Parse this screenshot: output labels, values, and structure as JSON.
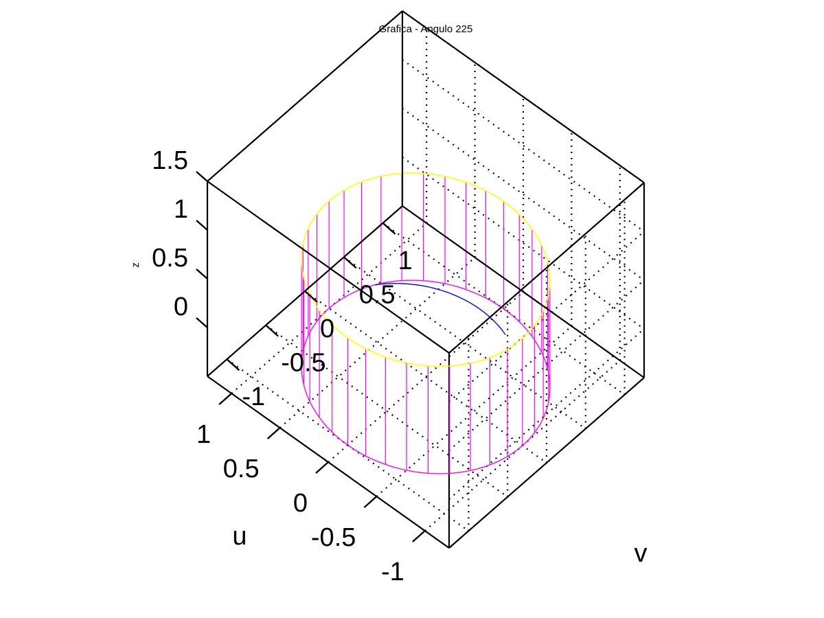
{
  "chart_data": {
    "type": "surface3d",
    "title": "Grafica - Angulo  225",
    "xlabel": "u",
    "ylabel": "v",
    "zlabel": "z",
    "xlim": [
      -1.25,
      1.25
    ],
    "ylim": [
      -1.25,
      1.25
    ],
    "zlim": [
      -0.5,
      1.5
    ],
    "xticks": [
      1,
      0.5,
      0,
      -0.5,
      -1
    ],
    "xtick_labels": [
      "1",
      "0.5",
      "0",
      "-0.5",
      "-1"
    ],
    "yticks": [
      -1,
      -0.5,
      0,
      0.5,
      1
    ],
    "ytick_labels": [
      "-1",
      "-0.5",
      "0",
      "0.5",
      "1"
    ],
    "zticks": [
      1.5,
      1,
      0.5,
      0
    ],
    "ztick_labels": [
      "1.5",
      "1",
      "0.5",
      "0"
    ],
    "grid": true,
    "view_azimuth_deg": 225,
    "series": [
      {
        "kind": "cylinder_wall",
        "radius": 1,
        "z_range": [
          -0.5,
          0.6
        ],
        "vertical_lines": 36,
        "color": "#ff00ff"
      },
      {
        "kind": "top_edge_circle",
        "radius": 1,
        "z": 0.6,
        "color": "#ffff00"
      },
      {
        "kind": "base_curve",
        "z": -0.5,
        "color": "#0000ff"
      }
    ],
    "colors": {
      "box": "#000000",
      "grid": "#000000",
      "wall": "#ff00ff",
      "rim": "#ffff00",
      "curve": "#0000ff"
    }
  }
}
